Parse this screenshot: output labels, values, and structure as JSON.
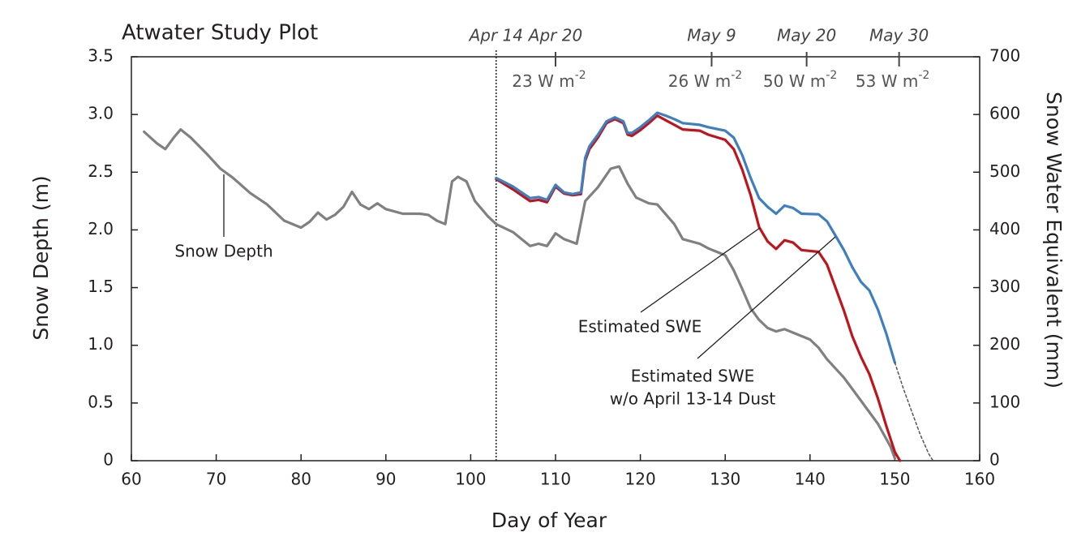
{
  "chart_data": {
    "type": "line",
    "title": "Atwater Study Plot",
    "xlabel": "Day of Year",
    "ylabel": "Snow Depth (m)",
    "y2label": "Snow Water Equivalent (mm)",
    "xlim": [
      60,
      160
    ],
    "xticks": [
      60,
      70,
      80,
      90,
      100,
      110,
      120,
      130,
      140,
      150,
      160
    ],
    "ylim": [
      0,
      3.5
    ],
    "yticks": [
      0,
      0.5,
      {
        "value": 1,
        "label": "1.0"
      },
      1.5,
      {
        "value": 2,
        "label": "2.0"
      },
      2.5,
      {
        "value": 3,
        "label": "3.0"
      },
      3.5
    ],
    "y2lim": [
      0,
      700
    ],
    "y2ticks": [
      0,
      100,
      200,
      300,
      400,
      500,
      600,
      700
    ],
    "series": [
      {
        "name": "Snow Depth",
        "color": "#808080",
        "x": [
          61.5,
          63,
          64,
          65,
          65.8,
          67,
          69,
          70.5,
          72,
          74,
          76,
          78,
          80,
          81,
          82,
          83,
          84,
          85,
          86,
          87,
          88,
          89,
          90,
          92,
          94,
          95,
          96,
          97,
          97.8,
          98.5,
          99.5,
          100.5,
          102,
          103,
          105,
          107,
          108,
          109,
          110,
          111,
          112.5,
          113.5,
          115,
          116.5,
          117.5,
          118.5,
          119.5,
          121,
          122,
          124,
          125,
          127,
          128,
          130,
          131,
          132,
          133,
          134,
          135,
          136,
          137,
          138,
          140,
          141,
          142,
          144,
          146,
          148,
          149.5,
          150
        ],
        "values": [
          2.85,
          2.75,
          2.7,
          2.8,
          2.87,
          2.8,
          2.65,
          2.53,
          2.45,
          2.32,
          2.22,
          2.08,
          2.02,
          2.07,
          2.15,
          2.09,
          2.13,
          2.2,
          2.33,
          2.22,
          2.18,
          2.23,
          2.18,
          2.14,
          2.14,
          2.13,
          2.08,
          2.05,
          2.42,
          2.46,
          2.42,
          2.25,
          2.12,
          2.05,
          1.98,
          1.86,
          1.88,
          1.86,
          1.97,
          1.92,
          1.88,
          2.25,
          2.37,
          2.53,
          2.55,
          2.4,
          2.28,
          2.23,
          2.22,
          2.05,
          1.92,
          1.88,
          1.84,
          1.78,
          1.65,
          1.49,
          1.32,
          1.22,
          1.15,
          1.12,
          1.14,
          1.11,
          1.05,
          0.98,
          0.88,
          0.72,
          0.52,
          0.32,
          0.12,
          0.02
        ]
      },
      {
        "name": "Estimated SWE",
        "color": "#c0141c",
        "axis": "y2",
        "x": [
          103,
          105,
          107,
          108,
          109,
          110,
          111,
          112,
          113,
          113.5,
          114,
          115,
          116,
          117,
          118,
          118.5,
          119,
          120,
          121,
          122,
          123,
          124,
          125,
          127,
          128,
          130,
          131,
          132,
          133,
          134,
          135,
          136,
          137,
          138,
          139,
          141,
          142,
          143,
          144,
          145,
          146,
          147,
          148,
          149,
          150,
          150.6
        ],
        "values": [
          488,
          470,
          450,
          452,
          448,
          475,
          463,
          460,
          462,
          520,
          540,
          560,
          585,
          592,
          585,
          565,
          563,
          573,
          585,
          598,
          590,
          582,
          574,
          572,
          565,
          556,
          540,
          505,
          460,
          405,
          380,
          367,
          382,
          378,
          365,
          362,
          340,
          300,
          260,
          215,
          180,
          150,
          108,
          60,
          15,
          0
        ]
      },
      {
        "name": "Estimated SWE w/o April 13-14 Dust",
        "color": "#3d7fc0",
        "axis": "y2",
        "x": [
          103,
          105,
          107,
          108,
          109,
          110,
          111,
          112,
          113,
          113.5,
          114,
          115,
          116,
          117,
          118,
          118.5,
          119,
          120,
          121,
          122,
          123,
          124,
          125,
          127,
          128,
          130,
          131,
          132,
          133,
          134,
          135,
          136,
          137,
          138,
          139,
          141,
          142,
          143,
          144,
          145,
          146,
          147,
          148,
          149,
          150
        ],
        "values": [
          490,
          475,
          455,
          457,
          452,
          478,
          465,
          462,
          465,
          525,
          545,
          565,
          588,
          595,
          588,
          568,
          568,
          578,
          590,
          603,
          598,
          592,
          585,
          582,
          578,
          572,
          560,
          530,
          490,
          455,
          440,
          428,
          442,
          438,
          428,
          427,
          415,
          390,
          365,
          335,
          310,
          295,
          262,
          220,
          170
        ]
      },
      {
        "color": "#555555",
        "axis": "y2",
        "dash": true,
        "x": [
          150,
          151,
          152,
          153,
          154,
          154.5
        ],
        "values": [
          170,
          125,
          85,
          45,
          12,
          0
        ]
      }
    ],
    "date_markers": [
      {
        "x": 103,
        "label": "Apr 14",
        "rule": true
      },
      {
        "x": 110,
        "label": "Apr 20",
        "energy": "23 W m",
        "exponent": "-2"
      },
      {
        "x": 128.4,
        "label": "May 9",
        "energy": "26 W m",
        "exponent": "-2"
      },
      {
        "x": 139.6,
        "label": "May 20",
        "energy": "50 W m",
        "exponent": "-2"
      },
      {
        "x": 150.5,
        "label": "May 30",
        "energy": "53 W m",
        "exponent": "-2"
      }
    ],
    "callouts": [
      {
        "lines": [
          "Snow Depth"
        ]
      },
      {
        "lines": [
          "Estimated SWE"
        ]
      },
      {
        "lines": [
          "Estimated SWE",
          "w/o April 13-14 Dust"
        ]
      }
    ]
  }
}
